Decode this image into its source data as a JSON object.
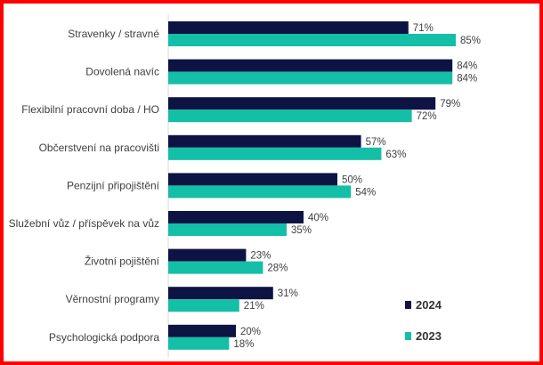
{
  "chart_data": {
    "type": "bar",
    "orientation": "horizontal",
    "categories": [
      "Stravenky / stravné",
      "Dovolená navíc",
      "Flexibilní pracovní doba / HO",
      "Občerstvení na pracovišti",
      "Penzijní připojištění",
      "Služební vůz / příspěvek na vůz",
      "Životní pojištění",
      "Věrnostní programy",
      "Psychologická podpora"
    ],
    "series": [
      {
        "name": "2024",
        "color": "#0d1444",
        "values": [
          71,
          84,
          79,
          57,
          50,
          40,
          23,
          31,
          20
        ],
        "labels": [
          "71%",
          "84%",
          "79%",
          "57%",
          "50%",
          "40%",
          "23%",
          "31%",
          "20%"
        ]
      },
      {
        "name": "2023",
        "color": "#13bfa6",
        "values": [
          85,
          84,
          72,
          63,
          54,
          35,
          28,
          21,
          18
        ],
        "labels": [
          "85%",
          "84%",
          "72%",
          "63%",
          "54%",
          "35%",
          "28%",
          "21%",
          "18%"
        ]
      }
    ],
    "xlim": [
      0,
      100
    ],
    "grid": false,
    "legend_position": "bottom-right"
  }
}
